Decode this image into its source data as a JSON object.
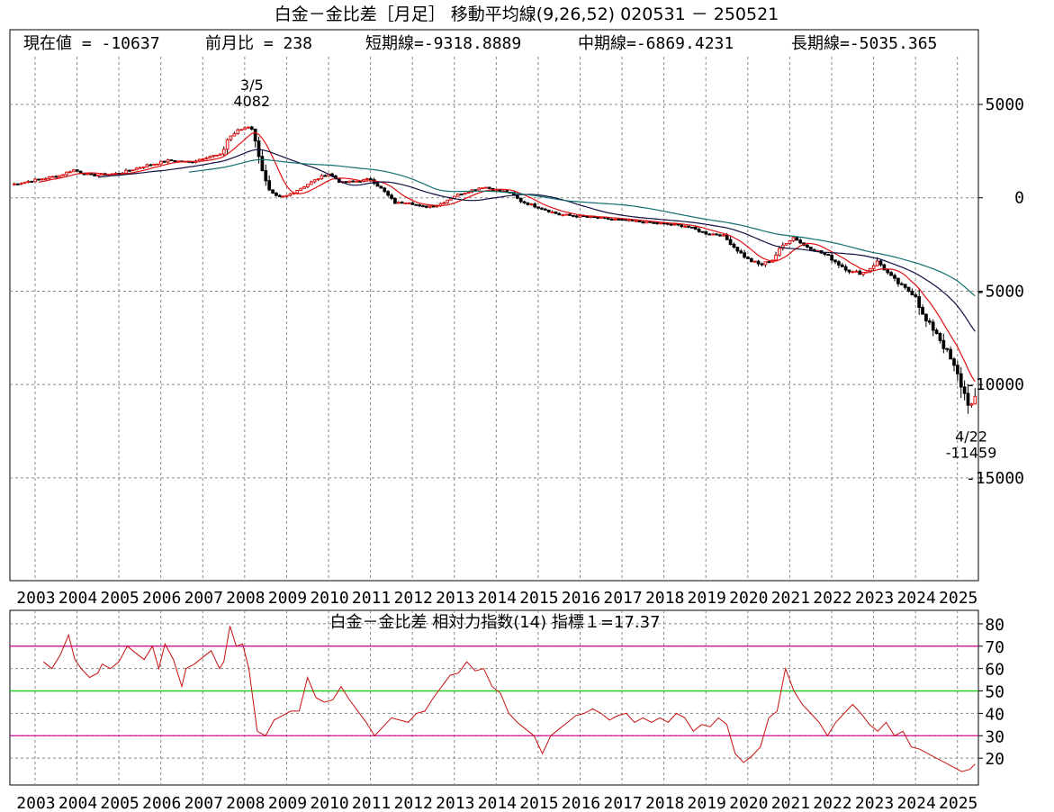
{
  "chart_data": [
    {
      "type": "candlestick",
      "title": "白金－金比差［月足］ 移動平均線(9,26,52) 020531 － 250521",
      "info": {
        "current_label": "現在値 = -10637",
        "prev_month_label": "前月比 = 238",
        "short_ma_label": "短期線=-9318.8889",
        "mid_ma_label": "中期線=-6869.4231",
        "long_ma_label": "長期線=-5035.365"
      },
      "ylim": [
        -20500,
        9000
      ],
      "y_ticks": [
        5000,
        0,
        -5000,
        -10000,
        -15000
      ],
      "y_tick_labels": [
        "5000",
        "0",
        "-5000",
        "-10000",
        "-15000"
      ],
      "x_range": [
        2002.4,
        2025.5
      ],
      "x_ticks": [
        2003,
        2004,
        2005,
        2006,
        2007,
        2008,
        2009,
        2010,
        2011,
        2012,
        2013,
        2014,
        2015,
        2016,
        2017,
        2018,
        2019,
        2020,
        2021,
        2022,
        2023,
        2024,
        2025
      ],
      "x_tick_labels": [
        "2003",
        "2004",
        "2005",
        "2006",
        "2007",
        "2008",
        "2009",
        "2010",
        "2011",
        "2012",
        "2013",
        "2014",
        "2015",
        "2016",
        "2017",
        "2018",
        "2019",
        "2020",
        "2021",
        "2022",
        "2023",
        "2024",
        "2025"
      ],
      "grid": true,
      "close_path": [
        [
          2002.42,
          700
        ],
        [
          2003.0,
          950
        ],
        [
          2003.6,
          1200
        ],
        [
          2003.9,
          1500
        ],
        [
          2004.3,
          1200
        ],
        [
          2005.0,
          1300
        ],
        [
          2005.6,
          1700
        ],
        [
          2006.2,
          2000
        ],
        [
          2006.7,
          1900
        ],
        [
          2007.1,
          2200
        ],
        [
          2007.45,
          2300
        ],
        [
          2007.6,
          3200
        ],
        [
          2007.85,
          3600
        ],
        [
          2008.15,
          3900
        ],
        [
          2008.3,
          2600
        ],
        [
          2008.45,
          1200
        ],
        [
          2008.6,
          300
        ],
        [
          2008.8,
          0
        ],
        [
          2009.0,
          100
        ],
        [
          2009.4,
          600
        ],
        [
          2009.8,
          1100
        ],
        [
          2010.0,
          1300
        ],
        [
          2010.3,
          800
        ],
        [
          2010.7,
          900
        ],
        [
          2011.0,
          1000
        ],
        [
          2011.3,
          400
        ],
        [
          2011.6,
          -300
        ],
        [
          2011.9,
          -200
        ],
        [
          2012.2,
          -500
        ],
        [
          2012.6,
          -400
        ],
        [
          2013.0,
          100
        ],
        [
          2013.4,
          400
        ],
        [
          2013.7,
          600
        ],
        [
          2014.0,
          400
        ],
        [
          2014.3,
          300
        ],
        [
          2014.6,
          -200
        ],
        [
          2015.0,
          -500
        ],
        [
          2015.5,
          -900
        ],
        [
          2016.0,
          -1000
        ],
        [
          2016.5,
          -1100
        ],
        [
          2017.0,
          -1200
        ],
        [
          2017.5,
          -1300
        ],
        [
          2018.0,
          -1400
        ],
        [
          2018.5,
          -1500
        ],
        [
          2019.0,
          -1900
        ],
        [
          2019.4,
          -2000
        ],
        [
          2019.7,
          -2700
        ],
        [
          2020.0,
          -3300
        ],
        [
          2020.3,
          -3600
        ],
        [
          2020.6,
          -3300
        ],
        [
          2020.8,
          -2600
        ],
        [
          2021.1,
          -2100
        ],
        [
          2021.3,
          -2500
        ],
        [
          2021.6,
          -2800
        ],
        [
          2021.9,
          -3100
        ],
        [
          2022.2,
          -3600
        ],
        [
          2022.5,
          -4000
        ],
        [
          2022.8,
          -4000
        ],
        [
          2023.1,
          -3400
        ],
        [
          2023.4,
          -4200
        ],
        [
          2023.7,
          -4800
        ],
        [
          2024.0,
          -5200
        ],
        [
          2024.2,
          -6500
        ],
        [
          2024.5,
          -7200
        ],
        [
          2024.8,
          -8500
        ],
        [
          2025.0,
          -9500
        ],
        [
          2025.2,
          -10700
        ],
        [
          2025.33,
          -11200
        ],
        [
          2025.42,
          -10637
        ]
      ],
      "annotations": [
        {
          "date_label": "3/5",
          "value_label": "4082",
          "x": 2008.17,
          "y": 4082
        },
        {
          "date_label": "4/22",
          "value_label": "-11459",
          "x": 2025.33,
          "y": -11459
        }
      ],
      "series": [
        {
          "short": "9",
          "color": "#e01010"
        },
        {
          "short": "26",
          "color": "#101040"
        },
        {
          "short": "52",
          "color": "#107070"
        }
      ]
    },
    {
      "type": "line",
      "title": "白金－金比差 相対力指数(14) 指標１=17.37",
      "ylim": [
        8,
        86
      ],
      "y_ticks": [
        80,
        70,
        60,
        50,
        40,
        30,
        20
      ],
      "y_tick_labels": [
        "80",
        "70",
        "60",
        "50",
        "40",
        "30",
        "20"
      ],
      "reference_lines": [
        {
          "y": 70,
          "color": "#d0109a"
        },
        {
          "y": 50,
          "color": "#18cc18"
        },
        {
          "y": 30,
          "color": "#d0109a"
        }
      ],
      "line_color": "#c81010",
      "x": [
        2003.2,
        2003.4,
        2003.6,
        2003.8,
        2003.95,
        2004.1,
        2004.3,
        2004.5,
        2004.6,
        2004.8,
        2005.0,
        2005.2,
        2005.4,
        2005.6,
        2005.8,
        2005.95,
        2006.1,
        2006.3,
        2006.5,
        2006.6,
        2006.8,
        2007.0,
        2007.2,
        2007.4,
        2007.5,
        2007.65,
        2007.8,
        2007.95,
        2008.1,
        2008.3,
        2008.5,
        2008.7,
        2008.9,
        2009.1,
        2009.3,
        2009.5,
        2009.7,
        2009.9,
        2010.1,
        2010.3,
        2010.5,
        2010.7,
        2010.9,
        2011.1,
        2011.3,
        2011.5,
        2011.7,
        2011.9,
        2012.1,
        2012.3,
        2012.5,
        2012.7,
        2012.9,
        2013.1,
        2013.3,
        2013.5,
        2013.7,
        2013.9,
        2014.1,
        2014.3,
        2014.5,
        2014.7,
        2014.9,
        2015.1,
        2015.3,
        2015.5,
        2015.7,
        2015.9,
        2016.1,
        2016.3,
        2016.5,
        2016.7,
        2016.9,
        2017.1,
        2017.3,
        2017.5,
        2017.7,
        2017.9,
        2018.1,
        2018.3,
        2018.5,
        2018.7,
        2018.9,
        2019.1,
        2019.3,
        2019.5,
        2019.7,
        2019.9,
        2020.1,
        2020.3,
        2020.5,
        2020.7,
        2020.9,
        2021.1,
        2021.3,
        2021.5,
        2021.7,
        2021.9,
        2022.1,
        2022.3,
        2022.5,
        2022.7,
        2022.9,
        2023.1,
        2023.3,
        2023.5,
        2023.7,
        2023.9,
        2024.1,
        2024.3,
        2024.5,
        2024.7,
        2024.9,
        2025.1,
        2025.3,
        2025.42
      ],
      "values": [
        63,
        60,
        66,
        75,
        64,
        60,
        56,
        58,
        62,
        60,
        63,
        70,
        67,
        64,
        70,
        60,
        71,
        64,
        52,
        60,
        62,
        65,
        68,
        60,
        63,
        79,
        70,
        71,
        60,
        32,
        30,
        37,
        39,
        41,
        41,
        56,
        47,
        45,
        46,
        52,
        46,
        41,
        36,
        30,
        34,
        38,
        37,
        36,
        40,
        41,
        47,
        52,
        57,
        58,
        63,
        59,
        60,
        52,
        49,
        40,
        36,
        33,
        30,
        22,
        30,
        33,
        36,
        39,
        40,
        42,
        40,
        37,
        39,
        40,
        36,
        38,
        36,
        38,
        36,
        40,
        38,
        32,
        35,
        34,
        38,
        35,
        22,
        18,
        21,
        25,
        38,
        41,
        60,
        50,
        44,
        40,
        36,
        30,
        36,
        40,
        44,
        40,
        35,
        32,
        36,
        30,
        32,
        25,
        24,
        22,
        20,
        18,
        16,
        14,
        15,
        17.37
      ]
    }
  ]
}
